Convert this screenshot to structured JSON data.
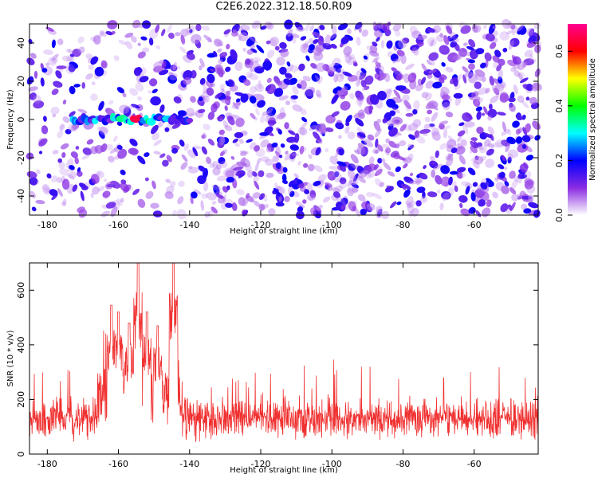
{
  "page_title": "C2E6.2022.312.18.50.R09",
  "chart_data": [
    {
      "type": "heatmap",
      "title": "C2E6.2022.312.18.50.R09",
      "xlabel": "Height of straight line (km)",
      "ylabel": "Frequency (Hz)",
      "xlim": [
        -185,
        -42
      ],
      "ylim": [
        -50,
        50
      ],
      "x_ticks": [
        "-180",
        "-160",
        "-140",
        "-120",
        "-100",
        "-80",
        "-60"
      ],
      "y_ticks": [
        "-40",
        "-20",
        "0",
        "20",
        "40"
      ],
      "colorbar": {
        "label": "Normalized spectral amplitude",
        "range": [
          0,
          0.7
        ],
        "ticks": [
          "0.0",
          "0.2",
          "0.4",
          "0.6"
        ],
        "colors": [
          "#ffffff",
          "#8a2be2",
          "#0000ff",
          "#00ffff",
          "#00ff00",
          "#ffff00",
          "#ff0000",
          "#ff0090"
        ]
      },
      "signal_band": {
        "x_range": [
          -173,
          -140
        ],
        "frequency": 0,
        "peak_x": -155,
        "peak_value": 0.65
      },
      "background_level": "random noise 0.0-0.2"
    },
    {
      "type": "line",
      "xlabel": "Height of straight line (km)",
      "ylabel": "SNR (10 * v/v)",
      "xlim": [
        -185,
        -42
      ],
      "ylim": [
        0,
        700
      ],
      "x_ticks": [
        "-180",
        "-160",
        "-140",
        "-120",
        "-100",
        "-80",
        "-60"
      ],
      "y_ticks": [
        "0",
        "200",
        "400",
        "600"
      ],
      "color": "#f03030",
      "series_profile": {
        "baseline_mean": 130,
        "baseline_range": [
          20,
          300
        ],
        "peaks": [
          {
            "x": -154.5,
            "value": 700
          },
          {
            "x": -144.5,
            "value": 700
          },
          {
            "x": -162,
            "value": 545
          },
          {
            "x": -160,
            "value": 520
          },
          {
            "x": -157,
            "value": 480
          },
          {
            "x": -152,
            "value": 520
          },
          {
            "x": -149,
            "value": 470
          }
        ]
      }
    }
  ]
}
